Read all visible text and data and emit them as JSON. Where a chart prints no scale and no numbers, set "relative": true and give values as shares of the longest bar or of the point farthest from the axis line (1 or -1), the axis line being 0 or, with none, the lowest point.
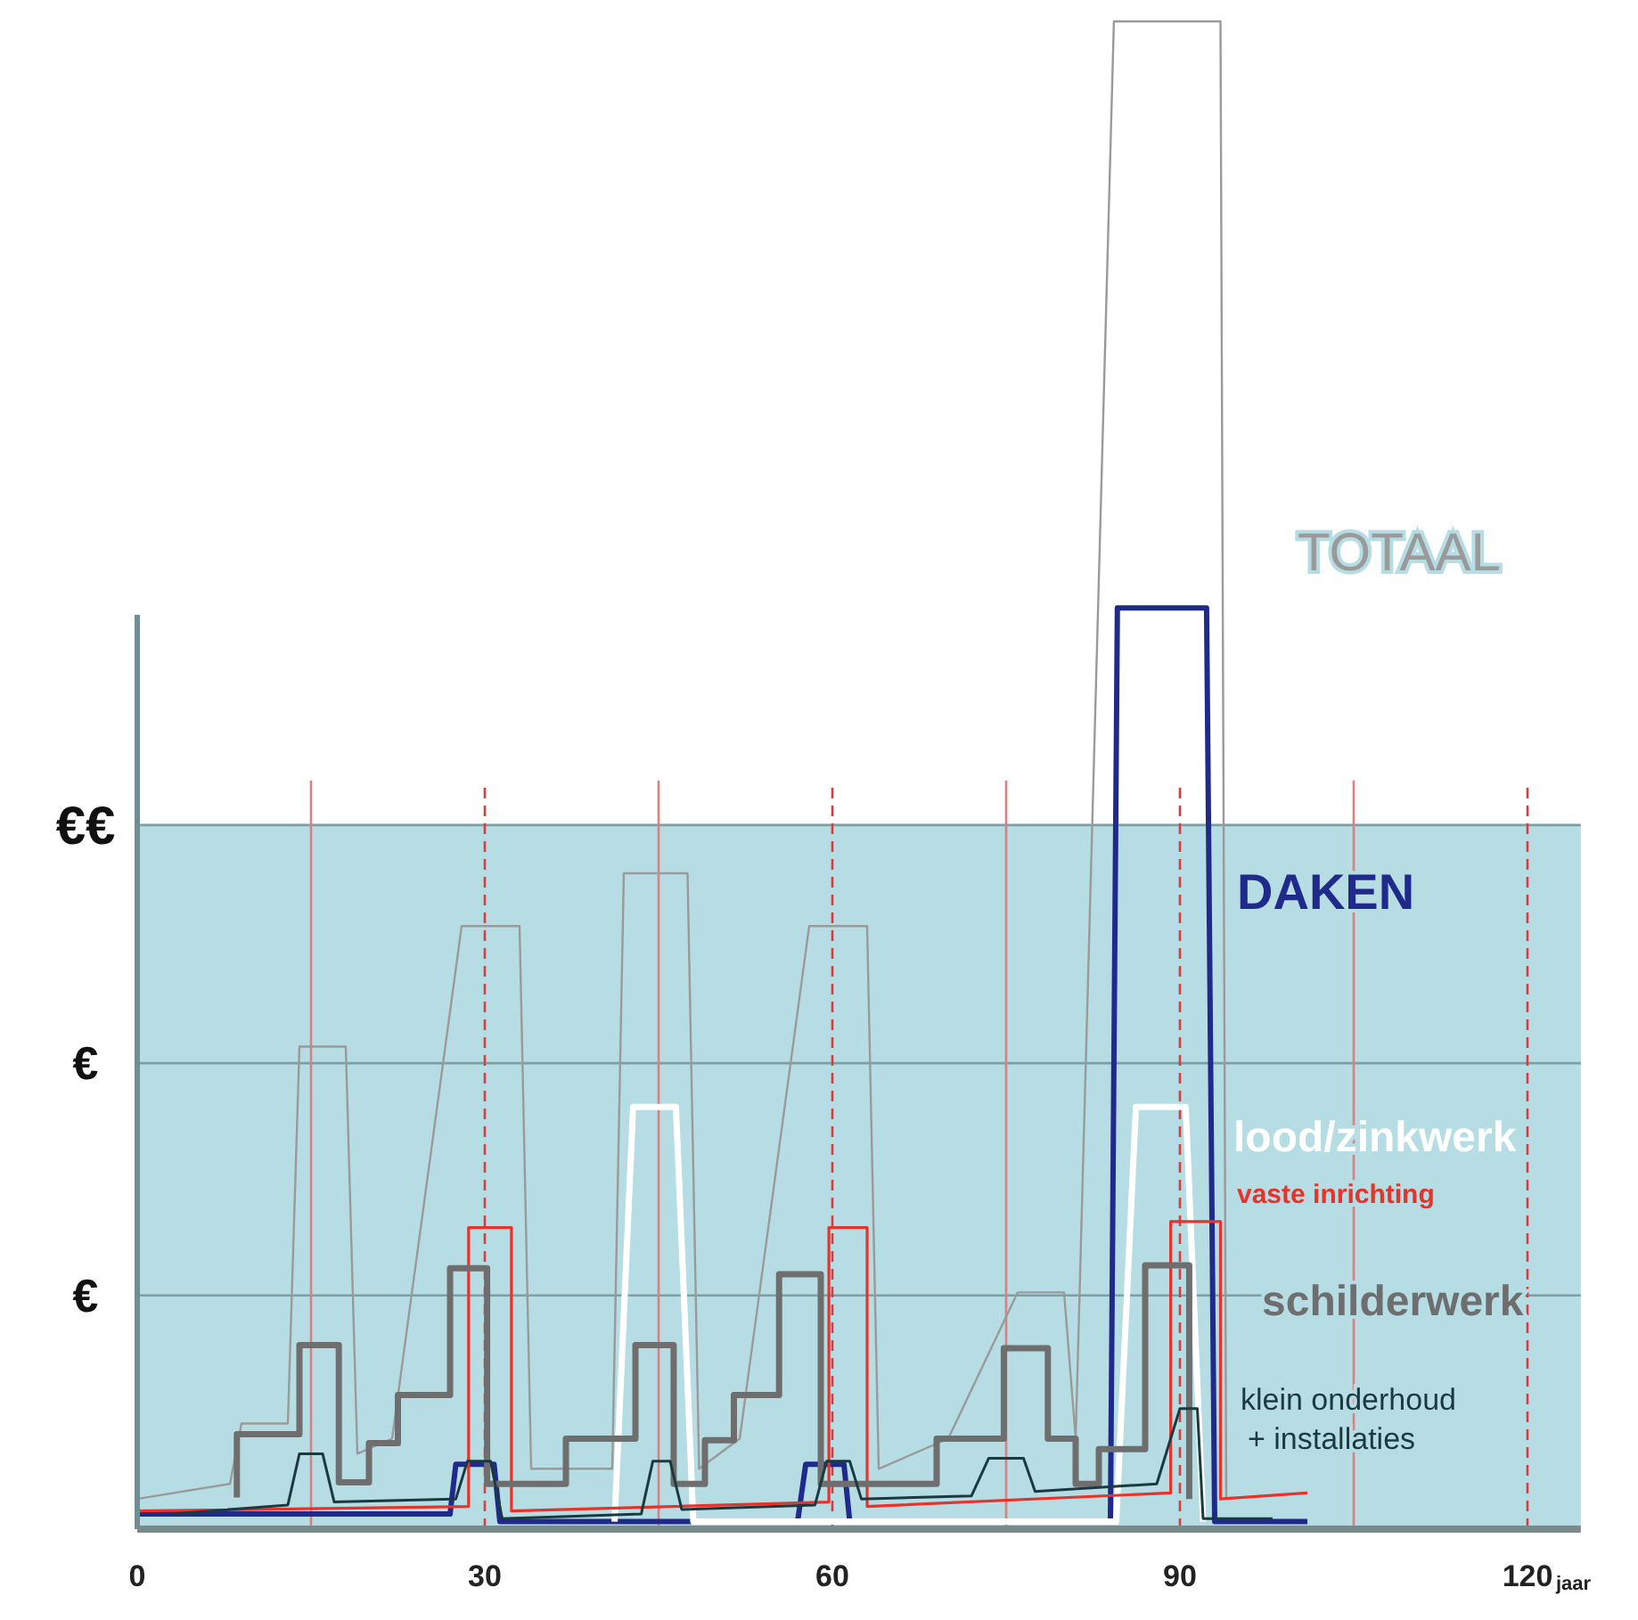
{
  "chart_data": {
    "type": "line",
    "relative": true,
    "xlabel": "jaar",
    "xlim": [
      0,
      124.6
    ],
    "xticks": [
      0,
      30,
      60,
      90,
      120
    ],
    "grid": false,
    "marker": "none",
    "line_style": "solid",
    "series": [
      {
        "name": "TOTAAL",
        "color": "#9a9a9a",
        "x": [
          0,
          8,
          9,
          13,
          14,
          18,
          19,
          22,
          28,
          33,
          34,
          41,
          42,
          47.5,
          48.5,
          52,
          58,
          63,
          64,
          70,
          76,
          80,
          81,
          84.3,
          93.5,
          94
        ],
        "values": [
          0.02,
          0.03,
          0.07,
          0.07,
          0.32,
          0.32,
          0.05,
          0.06,
          0.4,
          0.4,
          0.04,
          0.04,
          0.435,
          0.435,
          0.04,
          0.06,
          0.4,
          0.4,
          0.04,
          0.06,
          0.157,
          0.157,
          0.06,
          1.0,
          1.0,
          0.02
        ]
      },
      {
        "name": "DAKEN",
        "color": "#1f2a8a",
        "x": [
          0,
          27,
          27.5,
          30.8,
          31.3,
          57,
          57.7,
          61,
          61.5,
          84,
          84.6,
          92.3,
          93,
          101
        ],
        "values": [
          0.01,
          0.01,
          0.043,
          0.043,
          0.005,
          0.005,
          0.043,
          0.043,
          0.005,
          0.005,
          0.611,
          0.611,
          0.005,
          0.005
        ]
      },
      {
        "name": "lood/zinkwerk",
        "color": "#ffffff",
        "x": [
          41.2,
          42.8,
          46.5,
          48,
          84.5,
          86.2,
          90.5,
          92
        ],
        "values": [
          0.005,
          0.28,
          0.28,
          0.005,
          0.005,
          0.28,
          0.28,
          0.005
        ]
      },
      {
        "name": "vaste inrichting",
        "color": "#e8322a",
        "x": [
          0,
          28.6,
          28.6,
          32.3,
          32.3,
          59.7,
          59.7,
          63,
          63,
          89.2,
          89.2,
          93.5,
          93.5,
          101
        ],
        "values": [
          0.012,
          0.015,
          0.2,
          0.2,
          0.012,
          0.018,
          0.2,
          0.2,
          0.015,
          0.024,
          0.204,
          0.204,
          0.02,
          0.024
        ]
      },
      {
        "name": "schilderwerk",
        "color": "#6e6e6e",
        "x": [
          8.6,
          8.6,
          14,
          14,
          17.4,
          17.4,
          20,
          20,
          22.5,
          22.5,
          27,
          27,
          30.2,
          30.2,
          37,
          37,
          43,
          43,
          46.3,
          46.3,
          49,
          49,
          51.5,
          51.5,
          55.4,
          55.4,
          59,
          59,
          69,
          69,
          74.8,
          74.8,
          78.6,
          78.6,
          81,
          81,
          83,
          83,
          87,
          87,
          90.8,
          90.8
        ],
        "values": [
          0.021,
          0.063,
          0.063,
          0.122,
          0.122,
          0.031,
          0.031,
          0.057,
          0.057,
          0.089,
          0.089,
          0.173,
          0.173,
          0.03,
          0.03,
          0.06,
          0.06,
          0.122,
          0.122,
          0.03,
          0.03,
          0.059,
          0.059,
          0.089,
          0.089,
          0.169,
          0.169,
          0.03,
          0.03,
          0.06,
          0.06,
          0.12,
          0.12,
          0.06,
          0.06,
          0.03,
          0.03,
          0.053,
          0.053,
          0.175,
          0.175,
          0.02
        ]
      },
      {
        "name": "klein onderhoud + installaties",
        "color": "#1a3a40",
        "x": [
          3,
          13,
          14,
          16,
          17,
          27.5,
          28.5,
          30.5,
          31.5,
          43.5,
          44.5,
          46,
          47,
          58.5,
          59.5,
          61.5,
          62.5,
          72,
          73.5,
          76.5,
          77.5,
          88,
          90,
          91.5,
          92,
          98
        ],
        "values": [
          0.01,
          0.016,
          0.05,
          0.05,
          0.018,
          0.02,
          0.045,
          0.045,
          0.007,
          0.01,
          0.045,
          0.045,
          0.013,
          0.016,
          0.045,
          0.045,
          0.02,
          0.022,
          0.047,
          0.047,
          0.025,
          0.03,
          0.08,
          0.08,
          0.007,
          0.007
        ]
      }
    ],
    "bands": [
      {
        "axis": "y",
        "from": 0,
        "to": 0.467,
        "color": "#b5dde3"
      }
    ],
    "ref_lines": [
      {
        "axis": "y",
        "value": 0.155,
        "label": "€",
        "color": "#7d9ea3"
      },
      {
        "axis": "y",
        "value": 0.309,
        "label": "€",
        "color": "#7d9ea3"
      },
      {
        "axis": "y",
        "value": 0.467,
        "label": "€€",
        "color": "#7d9ea3"
      },
      {
        "axis": "x",
        "value": 15,
        "color": "#d98080",
        "line_style": "solid"
      },
      {
        "axis": "x",
        "value": 30,
        "color": "#d04040",
        "line_style": "dashed"
      },
      {
        "axis": "x",
        "value": 45,
        "color": "#d98080",
        "line_style": "solid"
      },
      {
        "axis": "x",
        "value": 60,
        "color": "#d04040",
        "line_style": "dashed"
      },
      {
        "axis": "x",
        "value": 75,
        "color": "#d98080",
        "line_style": "solid"
      },
      {
        "axis": "x",
        "value": 90,
        "color": "#d04040",
        "line_style": "dashed"
      },
      {
        "axis": "x",
        "value": 105,
        "color": "#d98080",
        "line_style": "solid"
      },
      {
        "axis": "x",
        "value": 120,
        "color": "#d04040",
        "line_style": "dashed"
      }
    ]
  }
}
